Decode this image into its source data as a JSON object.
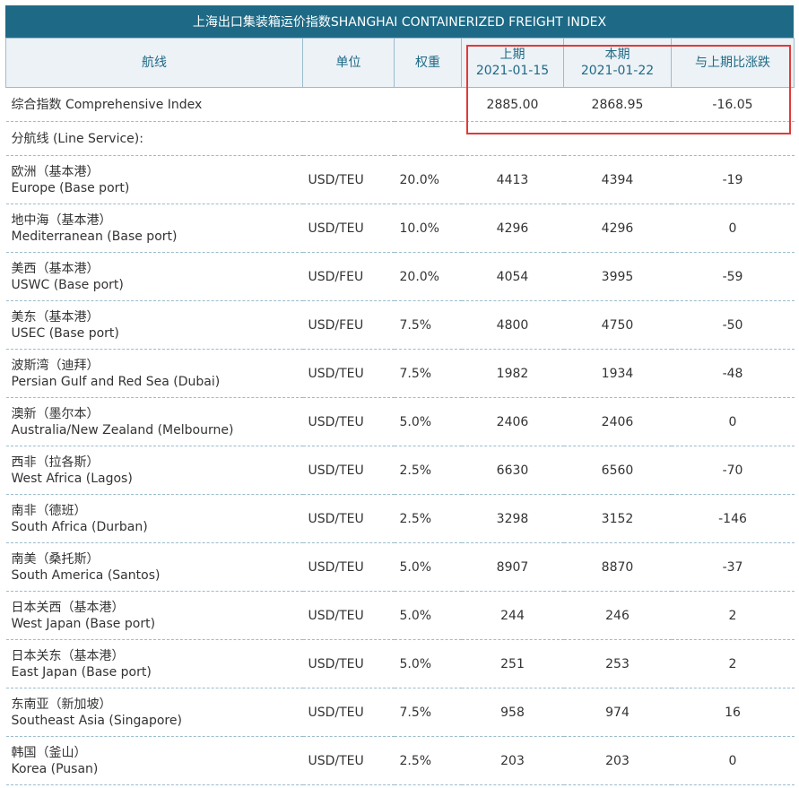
{
  "title": "上海出口集装箱运价指数SHANGHAI CONTAINERIZED FREIGHT INDEX",
  "headers": {
    "route": "航线",
    "unit": "单位",
    "weight": "权重",
    "prev_label": "上期",
    "prev_date": "2021-01-15",
    "curr_label": "本期",
    "curr_date": "2021-01-22",
    "change": "与上期比涨跌"
  },
  "comprehensive": {
    "label": "综合指数 Comprehensive Index",
    "prev": "2885.00",
    "curr": "2868.95",
    "change": "-16.05"
  },
  "line_service_label": "分航线 (Line Service):",
  "rows": [
    {
      "cn": "欧洲（基本港）",
      "en": "Europe (Base port)",
      "unit": "USD/TEU",
      "weight": "20.0%",
      "prev": "4413",
      "curr": "4394",
      "change": "-19"
    },
    {
      "cn": "地中海（基本港）",
      "en": "Mediterranean (Base port)",
      "unit": "USD/TEU",
      "weight": "10.0%",
      "prev": "4296",
      "curr": "4296",
      "change": "0"
    },
    {
      "cn": "美西（基本港）",
      "en": "USWC (Base port)",
      "unit": "USD/FEU",
      "weight": "20.0%",
      "prev": "4054",
      "curr": "3995",
      "change": "-59"
    },
    {
      "cn": "美东（基本港）",
      "en": "USEC (Base port)",
      "unit": "USD/FEU",
      "weight": "7.5%",
      "prev": "4800",
      "curr": "4750",
      "change": "-50"
    },
    {
      "cn": "波斯湾（迪拜）",
      "en": "Persian Gulf and Red Sea (Dubai)",
      "unit": "USD/TEU",
      "weight": "7.5%",
      "prev": "1982",
      "curr": "1934",
      "change": "-48"
    },
    {
      "cn": "澳新（墨尔本）",
      "en": "Australia/New Zealand (Melbourne)",
      "unit": "USD/TEU",
      "weight": "5.0%",
      "prev": "2406",
      "curr": "2406",
      "change": "0"
    },
    {
      "cn": "西非（拉各斯）",
      "en": "West Africa (Lagos)",
      "unit": "USD/TEU",
      "weight": "2.5%",
      "prev": "6630",
      "curr": "6560",
      "change": "-70"
    },
    {
      "cn": "南非（德班）",
      "en": "South Africa (Durban)",
      "unit": "USD/TEU",
      "weight": "2.5%",
      "prev": "3298",
      "curr": "3152",
      "change": "-146"
    },
    {
      "cn": "南美（桑托斯）",
      "en": "South America (Santos)",
      "unit": "USD/TEU",
      "weight": "5.0%",
      "prev": "8907",
      "curr": "8870",
      "change": "-37"
    },
    {
      "cn": "日本关西（基本港）",
      "en": "West Japan (Base port)",
      "unit": "USD/TEU",
      "weight": "5.0%",
      "prev": "244",
      "curr": "246",
      "change": "2"
    },
    {
      "cn": "日本关东（基本港）",
      "en": "East Japan (Base port)",
      "unit": "USD/TEU",
      "weight": "5.0%",
      "prev": "251",
      "curr": "253",
      "change": "2"
    },
    {
      "cn": "东南亚（新加坡）",
      "en": "Southeast Asia (Singapore)",
      "unit": "USD/TEU",
      "weight": "7.5%",
      "prev": "958",
      "curr": "974",
      "change": "16"
    },
    {
      "cn": "韩国（釜山）",
      "en": "Korea (Pusan)",
      "unit": "USD/TEU",
      "weight": "2.5%",
      "prev": "203",
      "curr": "203",
      "change": "0"
    }
  ],
  "colors": {
    "title_bg": "#1e6a86",
    "header_bg": "#edf2f6",
    "highlight_border": "#e03a3a"
  }
}
